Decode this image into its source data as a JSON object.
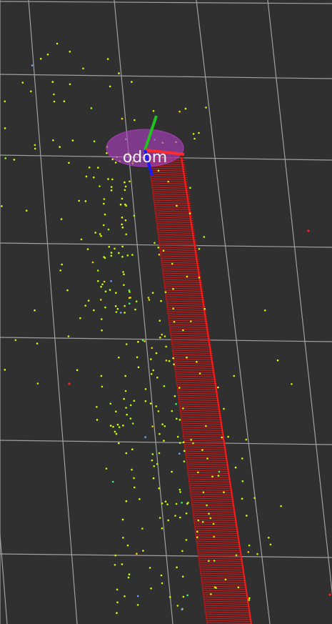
{
  "scene": {
    "background": "#303030",
    "grid_color": "#a0a0a0",
    "frame_label": "odom",
    "odom_marker_color": "#b440c8",
    "axes": {
      "x_color": "#ff2a2a",
      "y_color": "#22c022",
      "z_color": "#1a1aff"
    },
    "path_color": "#e02020",
    "point_cloud_colors": [
      "#c8ff00",
      "#e6ff1a",
      "#aaff00",
      "#ffd000",
      "#33ff66",
      "#66aaff"
    ],
    "outlier_color": "#ff2020"
  }
}
